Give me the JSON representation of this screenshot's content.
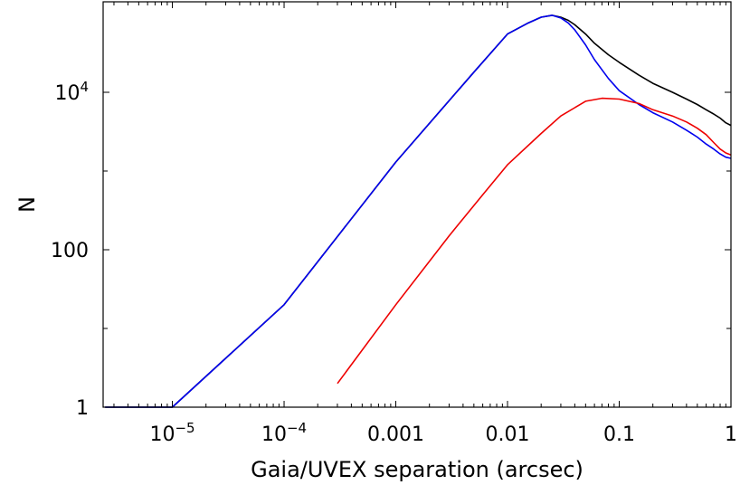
{
  "chart_data": {
    "type": "line",
    "title": "",
    "xlabel": "Gaia/UVEX separation (arcsec)",
    "ylabel": "N",
    "xscale": "log",
    "yscale": "log",
    "xlim": [
      2.4e-06,
      1.0
    ],
    "ylim": [
      1,
      100000
    ],
    "grid": false,
    "legend": "none",
    "x_ticks": [
      {
        "value": 1e-05,
        "base": "10",
        "exp": "−5"
      },
      {
        "value": 0.0001,
        "base": "10",
        "exp": "−4"
      },
      {
        "value": 0.001,
        "label": "0.001"
      },
      {
        "value": 0.01,
        "label": "0.01"
      },
      {
        "value": 0.1,
        "label": "0.1"
      },
      {
        "value": 1,
        "label": "1"
      }
    ],
    "y_ticks": [
      {
        "value": 1,
        "label": "1"
      },
      {
        "value": 100,
        "label": "100"
      },
      {
        "value": 10000,
        "base": "10",
        "exp": "4"
      }
    ],
    "series": [
      {
        "name": "black",
        "color": "#000000",
        "x": [
          2.5e-06,
          1e-05,
          0.0001,
          0.001,
          0.005,
          0.01,
          0.015,
          0.02,
          0.025,
          0.03,
          0.035,
          0.04,
          0.05,
          0.06,
          0.08,
          0.1,
          0.15,
          0.2,
          0.3,
          0.4,
          0.5,
          0.6,
          0.7,
          0.8,
          0.9,
          1.0
        ],
        "y": [
          1,
          1,
          20,
          1300,
          18000,
          55000,
          75000,
          90000,
          95000,
          90000,
          82000,
          72000,
          55000,
          42000,
          30000,
          24000,
          16500,
          13000,
          10000,
          8200,
          7000,
          6000,
          5300,
          4700,
          4100,
          3800
        ]
      },
      {
        "name": "blue",
        "color": "#0000ee",
        "x": [
          2.5e-06,
          1e-05,
          0.0001,
          0.001,
          0.005,
          0.01,
          0.015,
          0.02,
          0.025,
          0.03,
          0.035,
          0.04,
          0.05,
          0.06,
          0.08,
          0.1,
          0.15,
          0.2,
          0.3,
          0.4,
          0.5,
          0.6,
          0.7,
          0.8,
          0.9,
          1.0
        ],
        "y": [
          1,
          1,
          20,
          1300,
          18000,
          55000,
          75000,
          90000,
          95000,
          88000,
          76000,
          62000,
          40000,
          26000,
          15000,
          10500,
          7000,
          5500,
          4200,
          3300,
          2700,
          2200,
          1900,
          1650,
          1500,
          1450
        ]
      },
      {
        "name": "red",
        "color": "#ee0000",
        "x": [
          0.0003,
          0.001,
          0.003,
          0.006,
          0.01,
          0.02,
          0.03,
          0.05,
          0.07,
          0.1,
          0.15,
          0.2,
          0.3,
          0.4,
          0.5,
          0.6,
          0.7,
          0.8,
          0.9,
          1.0
        ],
        "y": [
          2,
          20,
          150,
          500,
          1200,
          3000,
          5000,
          7700,
          8400,
          8200,
          7200,
          6000,
          5000,
          4200,
          3500,
          2900,
          2300,
          1900,
          1700,
          1600
        ]
      }
    ]
  }
}
